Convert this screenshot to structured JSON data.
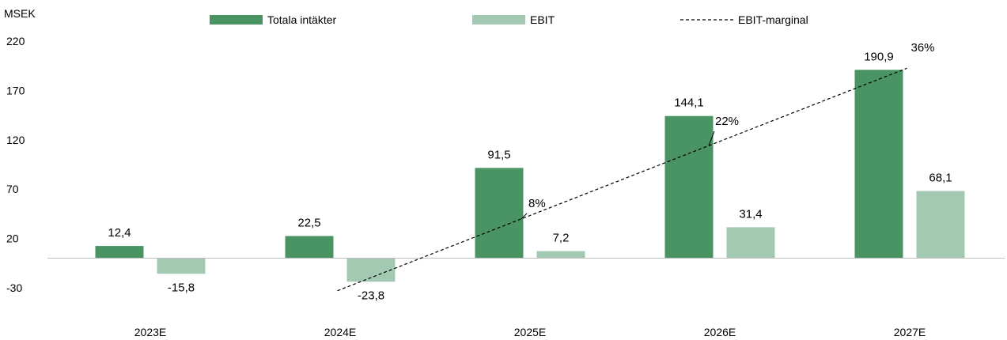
{
  "chart_data": {
    "type": "bar",
    "unit_label": "MSEK",
    "categories": [
      "2023E",
      "2024E",
      "2025E",
      "2026E",
      "2027E"
    ],
    "ylim": [
      -30,
      220
    ],
    "y_ticks": [
      220,
      170,
      120,
      70,
      20,
      -30
    ],
    "grid": false,
    "legend_position": "top",
    "series": [
      {
        "name": "Totala intäkter",
        "values": [
          12.4,
          22.5,
          91.5,
          144.1,
          190.9
        ],
        "labels": [
          "12,4",
          "22,5",
          "91,5",
          "144,1",
          "190,9"
        ],
        "color": "#4a9463"
      },
      {
        "name": "EBIT",
        "values": [
          -15.8,
          -23.8,
          7.2,
          31.4,
          68.1
        ],
        "labels": [
          "-15,8",
          "-23,8",
          "7,2",
          "31,4",
          "68,1"
        ],
        "color": "#a3c9b2"
      }
    ],
    "margin_line": {
      "name": "EBIT-marginal",
      "style": "dashed",
      "color": "#000000",
      "labels": [
        "8%",
        "22%",
        "36%"
      ]
    }
  }
}
